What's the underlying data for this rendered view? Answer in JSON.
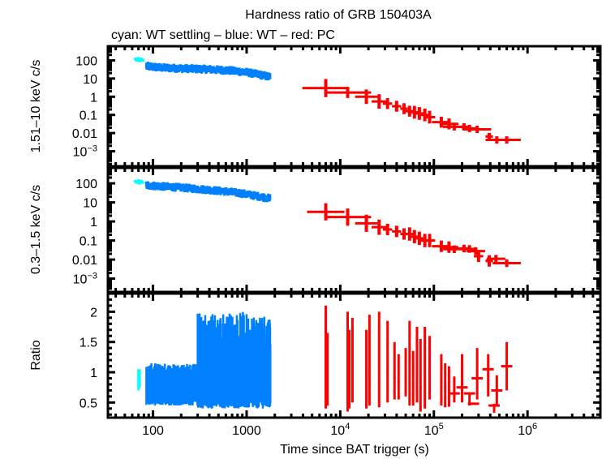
{
  "chart_data": {
    "type": "scatter",
    "title": "Hardness ratio of GRB 150403A",
    "subtitle": "cyan: WT settling – blue: WT – red: PC",
    "xlabel": "Time since BAT trigger (s)",
    "xscale": "log",
    "xlim": [
      33,
      6000000
    ],
    "xticks": [
      {
        "value": 100,
        "label": "100",
        "sup": ""
      },
      {
        "value": 1000,
        "label": "1000",
        "sup": ""
      },
      {
        "value": 10000,
        "label": "10",
        "sup": "4"
      },
      {
        "value": 100000,
        "label": "10",
        "sup": "5"
      },
      {
        "value": 1000000,
        "label": "10",
        "sup": "6"
      }
    ],
    "colors": {
      "wt_settling": "#00ffff",
      "wt": "#0080ff",
      "pc": "#ff0000"
    },
    "legend": "subtitle-text",
    "panels": [
      {
        "name": "hard-band",
        "ylabel": "1.51–10 keV c/s",
        "yscale": "log",
        "ylim": [
          0.00015,
          600
        ],
        "yticks": [
          {
            "value": 100,
            "label": "100",
            "sup": ""
          },
          {
            "value": 10,
            "label": "10",
            "sup": ""
          },
          {
            "value": 1,
            "label": "1",
            "sup": ""
          },
          {
            "value": 0.1,
            "label": "0.1",
            "sup": ""
          },
          {
            "value": 0.01,
            "label": "0.01",
            "sup": ""
          },
          {
            "value": 0.001,
            "label": "10",
            "sup": "−3"
          }
        ],
        "series": [
          {
            "name": "WT settling",
            "color_key": "wt_settling",
            "points": [
              [
                70,
                120
              ],
              [
                72,
                100
              ]
            ]
          },
          {
            "name": "WT",
            "color_key": "wt",
            "band": true,
            "points": [
              [
                85,
                48
              ],
              [
                120,
                40
              ],
              [
                200,
                36
              ],
              [
                400,
                32
              ],
              [
                700,
                27
              ],
              [
                1000,
                22
              ],
              [
                1400,
                16
              ],
              [
                1800,
                12
              ]
            ],
            "scatter": 0.32
          },
          {
            "name": "PC",
            "color_key": "pc",
            "points": [
              [
                7000,
                3.0,
                0.25,
                0.5
              ],
              [
                12000,
                1.7,
                0.25,
                0.3
              ],
              [
                19000,
                1.0,
                0.12,
                0.4
              ],
              [
                26000,
                0.55,
                0.08,
                0.4
              ],
              [
                32000,
                0.42,
                0.05,
                0.3
              ],
              [
                40000,
                0.3,
                0.05,
                0.3
              ],
              [
                48000,
                0.22,
                0.04,
                0.3
              ],
              [
                55000,
                0.16,
                0.05,
                0.3
              ],
              [
                62000,
                0.14,
                0.06,
                0.35
              ],
              [
                70000,
                0.12,
                0.05,
                0.35
              ],
              [
                80000,
                0.1,
                0.05,
                0.35
              ],
              [
                90000,
                0.075,
                0.06,
                0.35
              ],
              [
                120000,
                0.04,
                0.1,
                0.3
              ],
              [
                145000,
                0.032,
                0.1,
                0.3
              ],
              [
                165000,
                0.022,
                0.12,
                0.2
              ],
              [
                210000,
                0.022,
                0.06,
                0.2
              ],
              [
                240000,
                0.018,
                0.08,
                0.2
              ],
              [
                290000,
                0.016,
                0.15,
                0.2
              ],
              [
                390000,
                0.0065,
                0.04,
                0.2
              ],
              [
                470000,
                0.0042,
                0.12,
                0.2
              ],
              [
                600000,
                0.0042,
                0.15,
                0.2
              ]
            ]
          }
        ]
      },
      {
        "name": "soft-band",
        "ylabel": "0.3–1.5 keV c/s",
        "yscale": "log",
        "ylim": [
          0.0002,
          650
        ],
        "yticks": [
          {
            "value": 100,
            "label": "100",
            "sup": ""
          },
          {
            "value": 10,
            "label": "10",
            "sup": ""
          },
          {
            "value": 1,
            "label": "1",
            "sup": ""
          },
          {
            "value": 0.1,
            "label": "0.1",
            "sup": ""
          },
          {
            "value": 0.01,
            "label": "0.01",
            "sup": ""
          },
          {
            "value": 0.001,
            "label": "10",
            "sup": "−3"
          }
        ],
        "series": [
          {
            "name": "WT settling",
            "color_key": "wt_settling",
            "points": [
              [
                70,
                130
              ],
              [
                72,
                110
              ]
            ]
          },
          {
            "name": "WT",
            "color_key": "wt",
            "band": true,
            "points": [
              [
                85,
                80
              ],
              [
                120,
                70
              ],
              [
                200,
                60
              ],
              [
                400,
                45
              ],
              [
                700,
                35
              ],
              [
                1000,
                27
              ],
              [
                1400,
                20
              ],
              [
                1800,
                16
              ]
            ],
            "scatter": 0.3
          },
          {
            "name": "PC",
            "color_key": "pc",
            "points": [
              [
                7000,
                3.2,
                0.2,
                0.45
              ],
              [
                12000,
                1.7,
                0.25,
                0.45
              ],
              [
                19000,
                0.8,
                0.12,
                0.45
              ],
              [
                26000,
                0.5,
                0.08,
                0.4
              ],
              [
                32000,
                0.38,
                0.05,
                0.3
              ],
              [
                40000,
                0.3,
                0.05,
                0.3
              ],
              [
                48000,
                0.22,
                0.04,
                0.3
              ],
              [
                55000,
                0.22,
                0.05,
                0.35
              ],
              [
                62000,
                0.16,
                0.06,
                0.35
              ],
              [
                70000,
                0.13,
                0.05,
                0.35
              ],
              [
                80000,
                0.1,
                0.05,
                0.35
              ],
              [
                90000,
                0.1,
                0.06,
                0.35
              ],
              [
                120000,
                0.05,
                0.1,
                0.3
              ],
              [
                145000,
                0.045,
                0.1,
                0.3
              ],
              [
                165000,
                0.035,
                0.12,
                0.2
              ],
              [
                210000,
                0.038,
                0.06,
                0.2
              ],
              [
                240000,
                0.036,
                0.08,
                0.2
              ],
              [
                280000,
                0.028,
                0.1,
                0.2
              ],
              [
                300000,
                0.015,
                0.05,
                0.3
              ],
              [
                390000,
                0.0085,
                0.04,
                0.3
              ],
              [
                460000,
                0.011,
                0.1,
                0.2
              ],
              [
                600000,
                0.0065,
                0.15,
                0.2
              ]
            ]
          }
        ]
      },
      {
        "name": "ratio",
        "ylabel": "Ratio",
        "yscale": "linear",
        "ylim": [
          0.25,
          2.3
        ],
        "yticks": [
          {
            "value": 2,
            "label": "2",
            "sup": ""
          },
          {
            "value": 1.5,
            "label": "1.5",
            "sup": ""
          },
          {
            "value": 1,
            "label": "1",
            "sup": ""
          },
          {
            "value": 0.5,
            "label": "0.5",
            "sup": ""
          }
        ],
        "series": [
          {
            "name": "WT settling",
            "color_key": "wt_settling",
            "points": [
              [
                70,
                0.85,
                0.7,
                1.05
              ],
              [
                72,
                0.9,
                0.75,
                1.05
              ]
            ]
          },
          {
            "name": "WT",
            "color_key": "wt",
            "spiky": true,
            "x_range": [
              85,
              1800
            ],
            "segments": [
              {
                "x": [
                  85,
                  300
                ],
                "low": [
                  0.45,
                  0.58
                ],
                "high": [
                  0.95,
                  1.15
                ]
              },
              {
                "x": [
                  300,
                  1800
                ],
                "low": [
                  0.4,
                  0.6
                ],
                "high": [
                  1.3,
                  2.0
                ]
              }
            ]
          },
          {
            "name": "PC",
            "color_key": "pc",
            "points": [
              [
                7000,
                0.9,
                0.4,
                2.1
              ],
              [
                7300,
                0.8,
                0.45,
                1.65
              ],
              [
                12000,
                1.0,
                0.35,
                2.0
              ],
              [
                12500,
                0.9,
                0.4,
                1.7
              ],
              [
                13500,
                1.1,
                0.5,
                1.9
              ],
              [
                19000,
                1.0,
                0.4,
                1.7
              ],
              [
                20500,
                0.8,
                0.45,
                1.95
              ],
              [
                26000,
                0.85,
                0.42,
                2.0
              ],
              [
                32000,
                1.0,
                0.5,
                1.85
              ],
              [
                38000,
                0.9,
                0.55,
                1.5
              ],
              [
                42000,
                0.85,
                0.55,
                1.3
              ],
              [
                50000,
                0.9,
                0.6,
                1.4
              ],
              [
                55000,
                1.25,
                0.45,
                1.85
              ],
              [
                60000,
                0.8,
                0.45,
                1.35
              ],
              [
                66000,
                0.9,
                0.5,
                1.75
              ],
              [
                72000,
                0.75,
                0.35,
                1.55
              ],
              [
                80000,
                0.9,
                0.4,
                1.75
              ],
              [
                90000,
                0.85,
                0.55,
                1.6
              ],
              [
                120000,
                0.6,
                0.45,
                1.3
              ],
              [
                132000,
                0.75,
                0.42,
                1.15
              ],
              [
                145000,
                0.6,
                0.43,
                1.1
              ],
              [
                165000,
                0.65,
                0.5,
                0.93
              ],
              [
                200000,
                0.75,
                0.5,
                1.3
              ],
              [
                240000,
                0.65,
                0.45,
                0.65
              ],
              [
                265000,
                0.48,
                0.48,
                0.48
              ],
              [
                290000,
                0.9,
                0.55,
                1.4
              ],
              [
                380000,
                1.05,
                0.6,
                1.3
              ],
              [
                440000,
                0.45,
                0.33,
                0.48
              ],
              [
                470000,
                0.7,
                0.45,
                0.95
              ],
              [
                600000,
                1.1,
                0.7,
                1.5
              ]
            ]
          }
        ]
      }
    ]
  }
}
